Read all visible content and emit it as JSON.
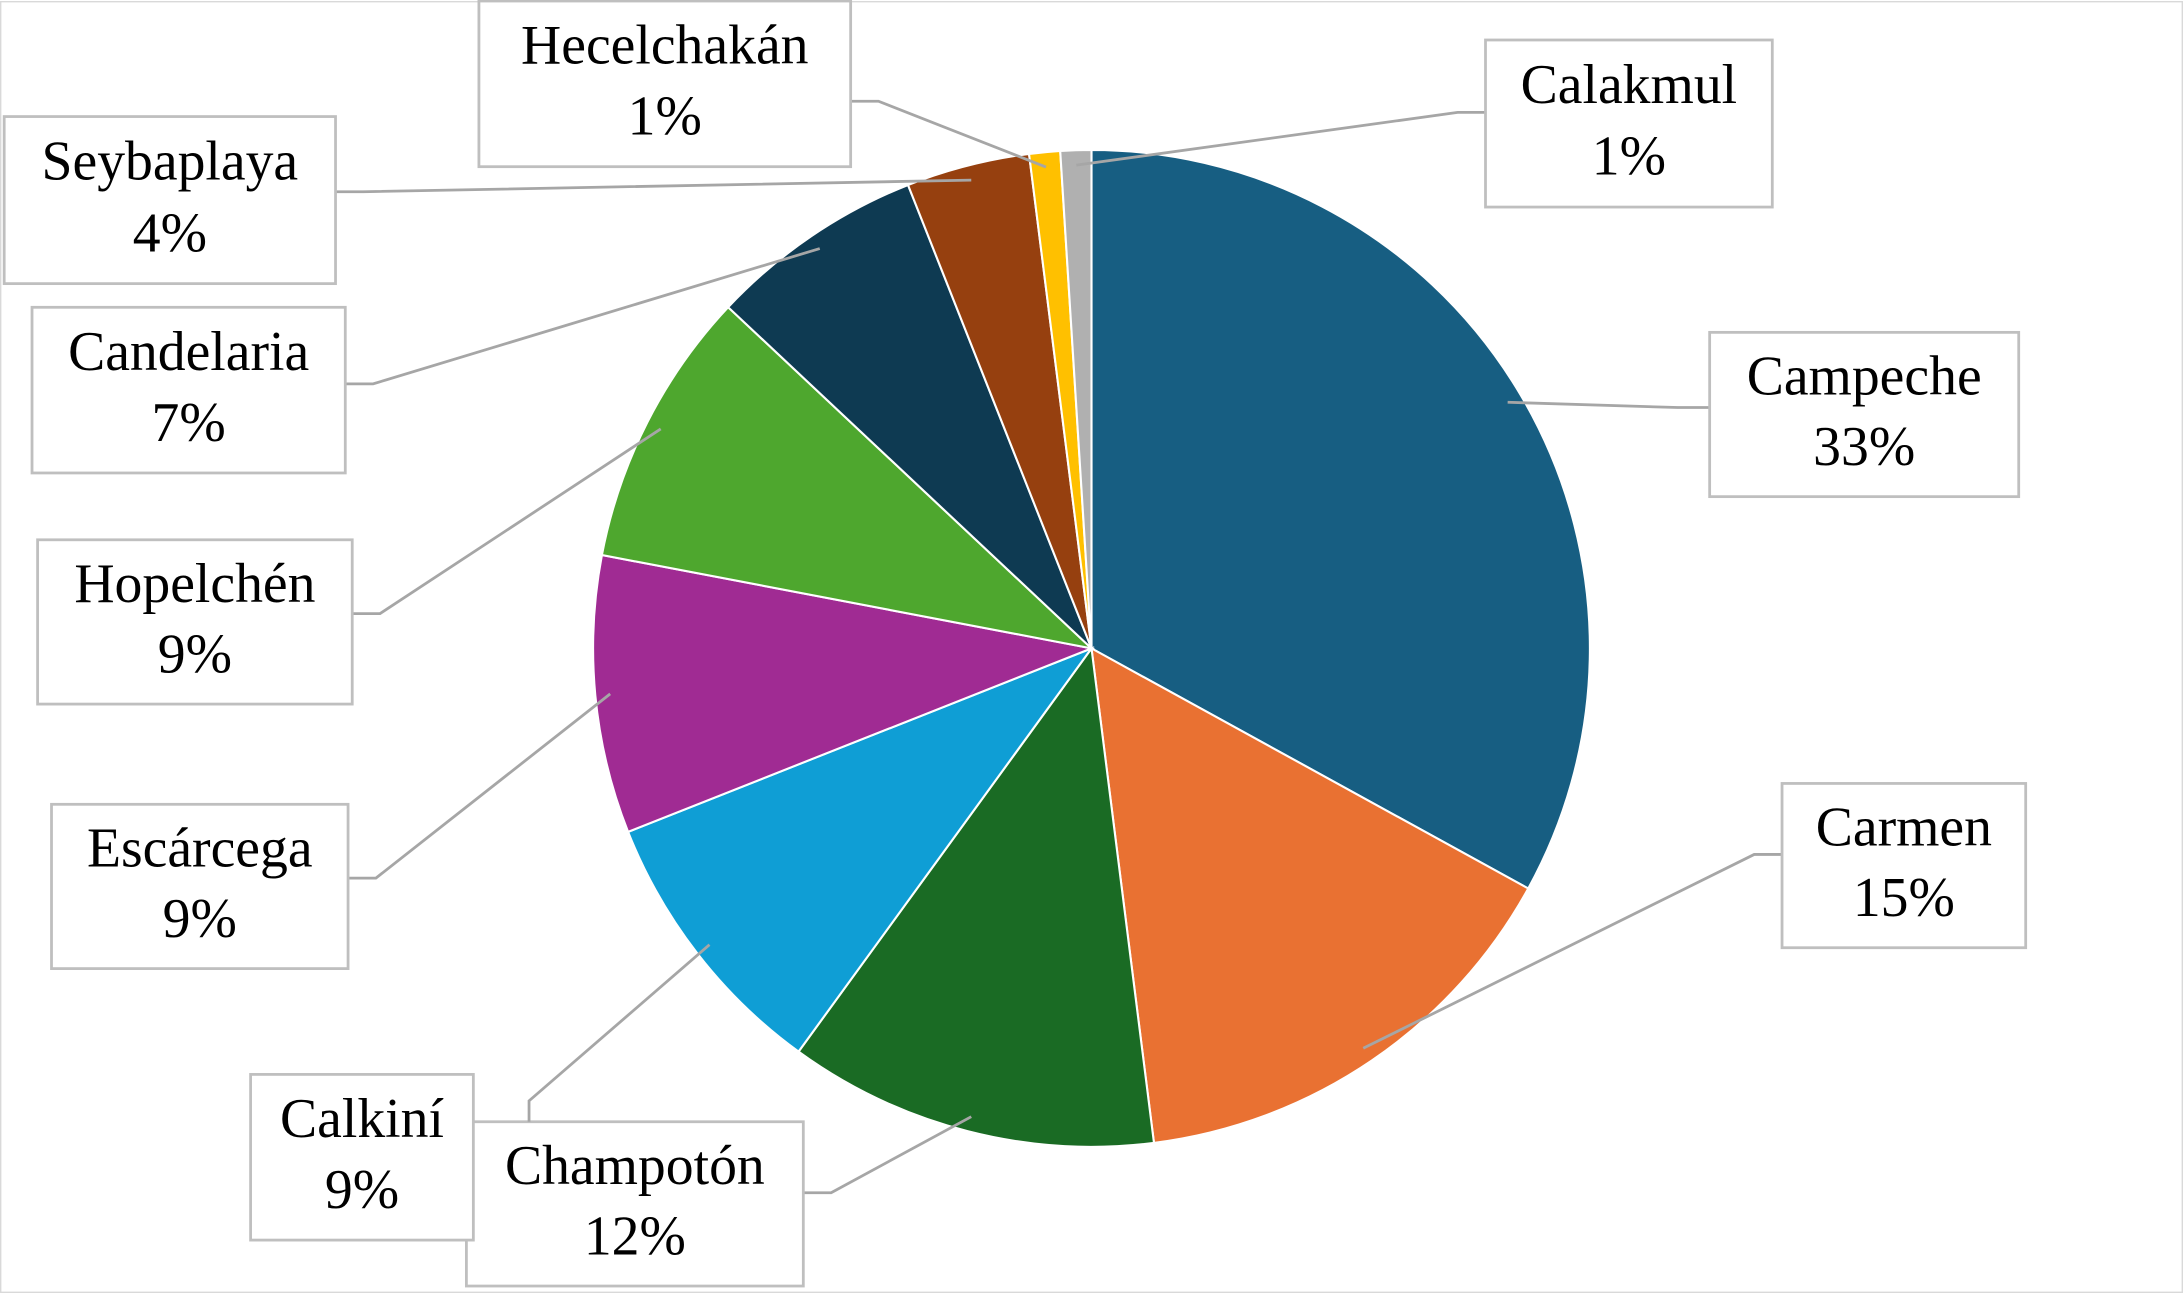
{
  "chart_data": {
    "type": "pie",
    "categories": [
      "Campeche",
      "Carmen",
      "Champotón",
      "Calkiní",
      "Escárcega",
      "Hopelchén",
      "Candelaria",
      "Seybaplaya",
      "Hecelchakán",
      "Calakmul"
    ],
    "values": [
      33,
      15,
      12,
      9,
      9,
      9,
      7,
      4,
      1,
      1
    ],
    "value_labels": [
      "33%",
      "15%",
      "12%",
      "9%",
      "9%",
      "9%",
      "7%",
      "4%",
      "1%",
      "1%"
    ],
    "colors": [
      "#175e82",
      "#e97132",
      "#1a6b24",
      "#0f9ed5",
      "#a02b93",
      "#4ea72e",
      "#0e3a52",
      "#96400f",
      "#ffc000",
      "#b0b0b0"
    ]
  }
}
